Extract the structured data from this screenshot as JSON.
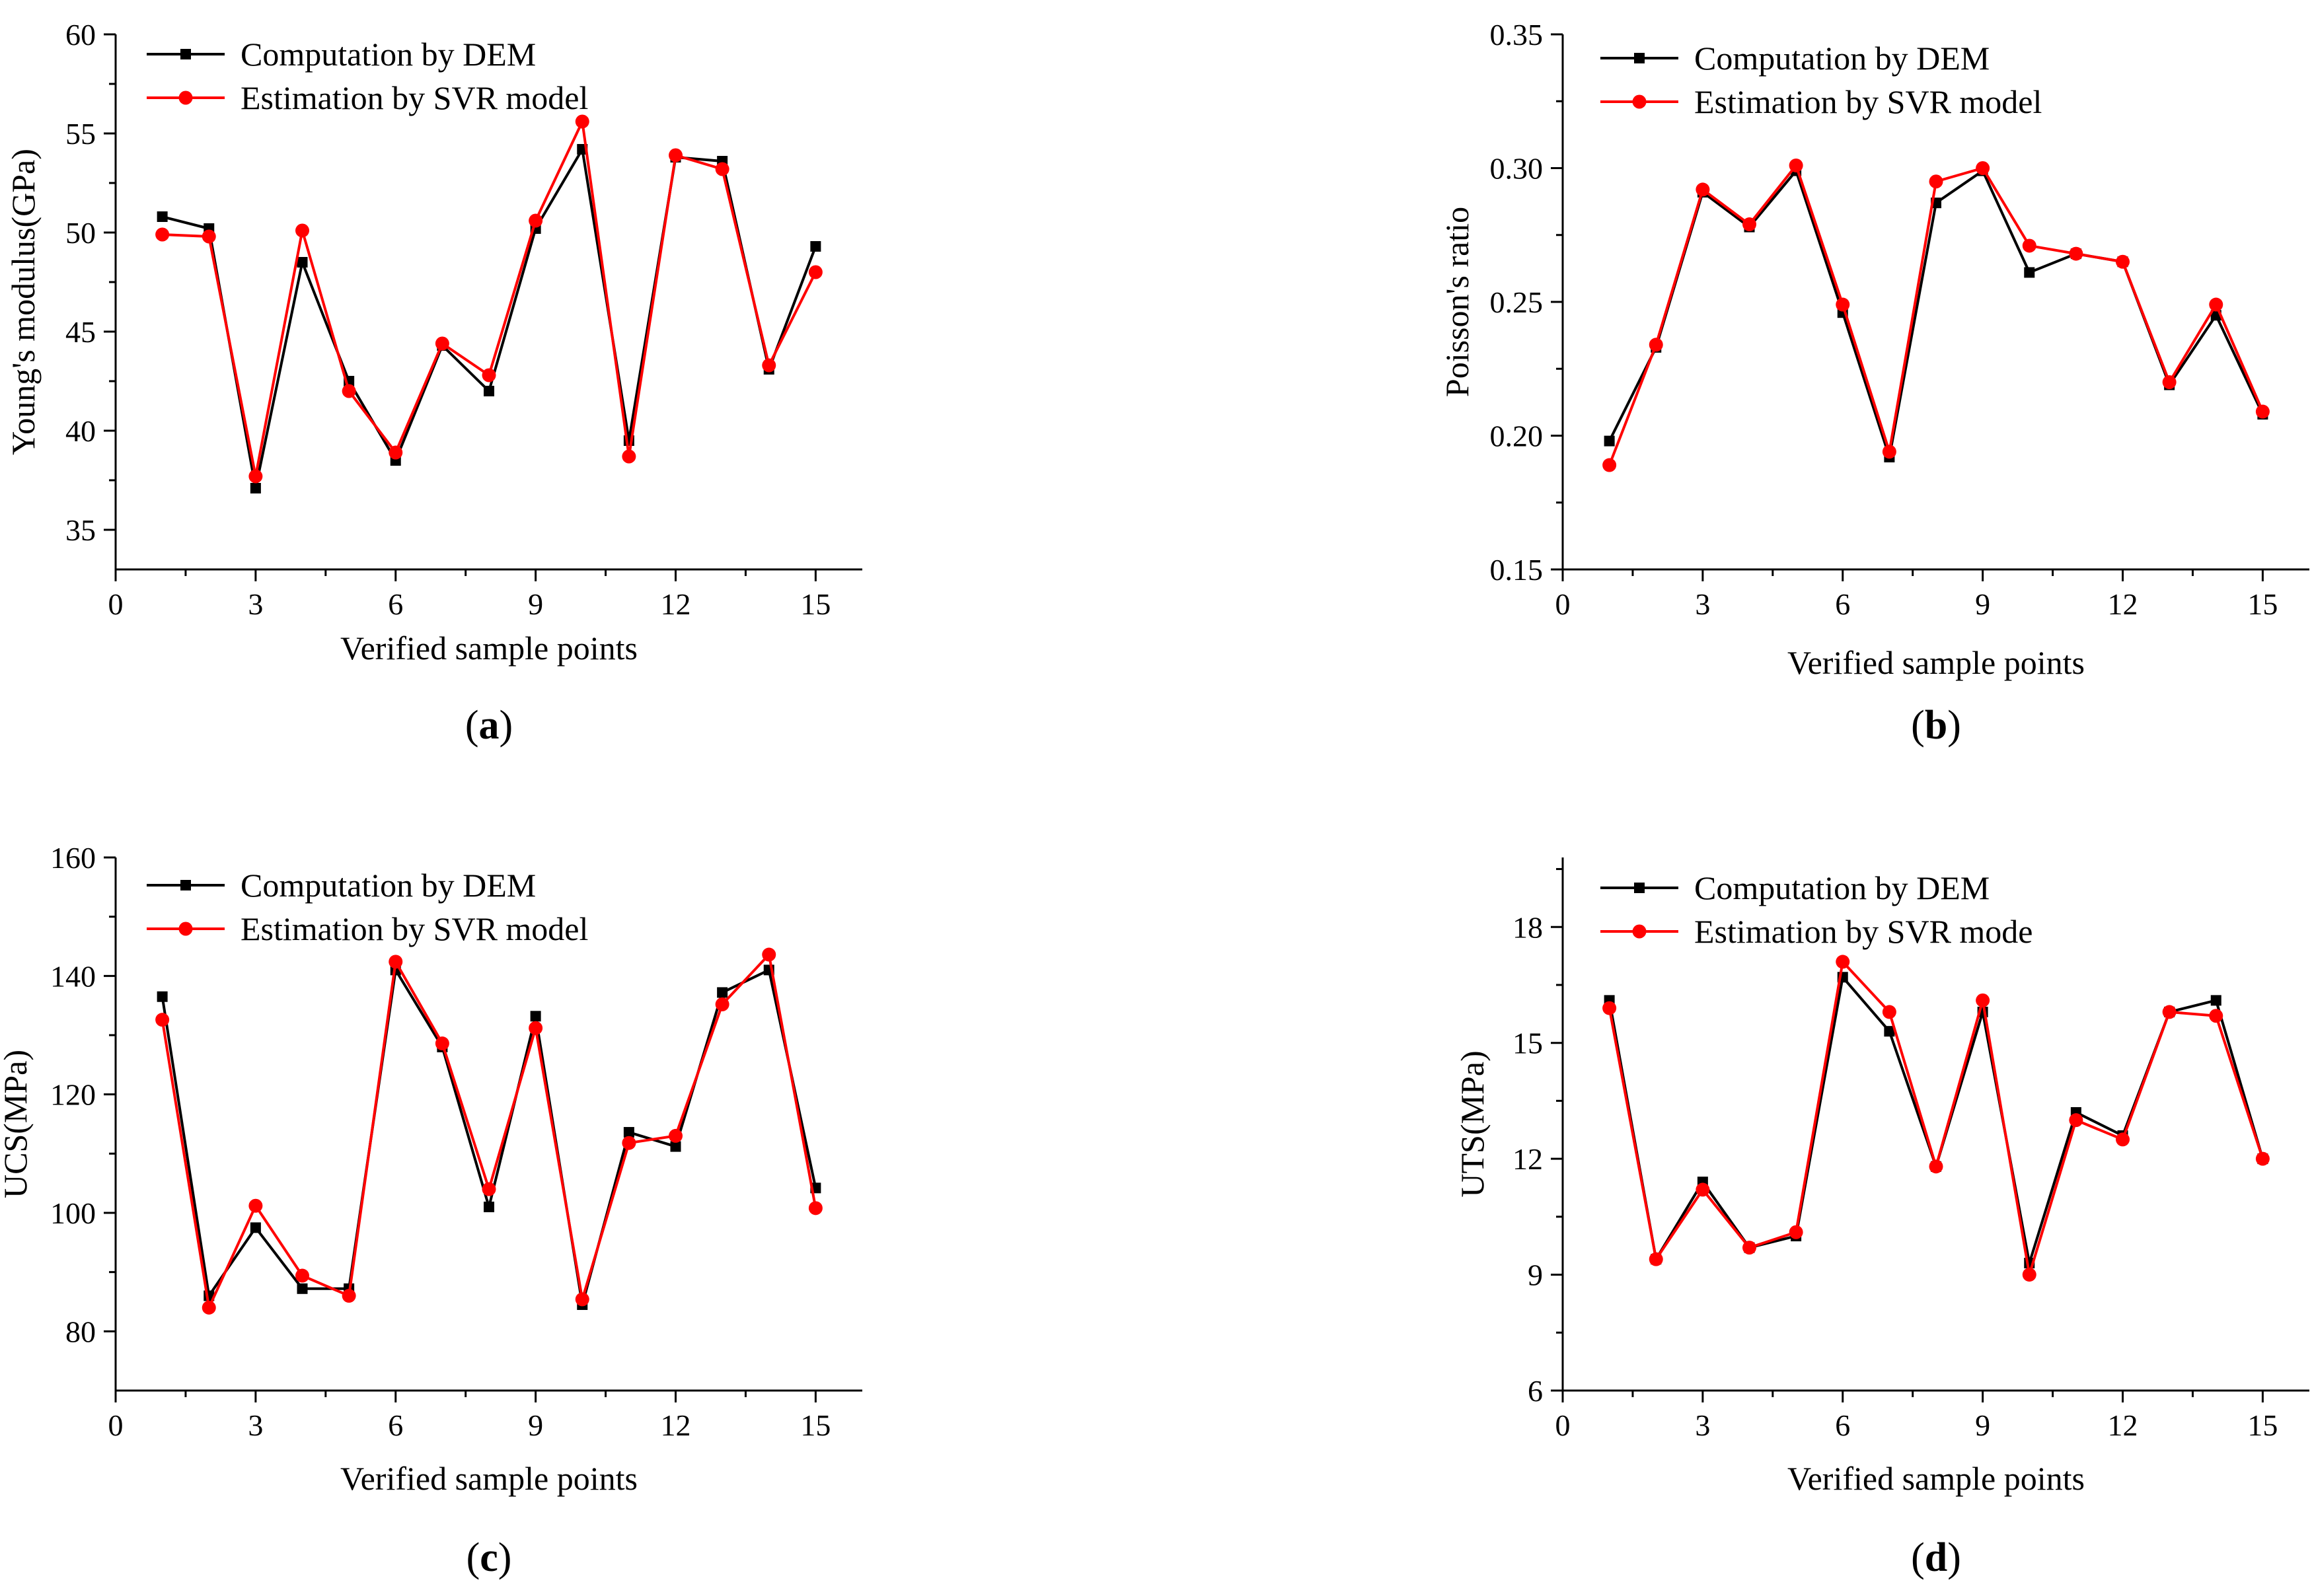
{
  "figure": {
    "colors": {
      "dem": "#000000",
      "svr": "#ff0000"
    }
  },
  "chart_data": [
    {
      "id": "a",
      "type": "line",
      "panel_label": "(a)",
      "panel_letter": "a",
      "xlabel": "Verified sample points",
      "ylabel": "Young's modulus(GPa)",
      "xlim": [
        0,
        16
      ],
      "ylim": [
        33,
        60
      ],
      "xticks": [
        0,
        3,
        6,
        9,
        12,
        15
      ],
      "yticks": [
        35,
        40,
        45,
        50,
        55,
        60
      ],
      "ytick_labels": [
        "35",
        "40",
        "45",
        "50",
        "55",
        "60"
      ],
      "legend_position": "top-left",
      "x": [
        1,
        2,
        3,
        4,
        5,
        6,
        7,
        8,
        9,
        10,
        11,
        12,
        13,
        14,
        15
      ],
      "series": [
        {
          "name": "Computation by DEM",
          "marker": "square",
          "color": "#000000",
          "values": [
            50.8,
            50.2,
            37.1,
            48.5,
            42.5,
            38.5,
            44.3,
            42.0,
            50.2,
            54.2,
            39.5,
            53.8,
            53.6,
            43.1,
            49.3
          ]
        },
        {
          "name": "Estimation by SVR model",
          "marker": "circle",
          "color": "#ff0000",
          "values": [
            49.9,
            49.8,
            37.7,
            50.1,
            42.0,
            38.9,
            44.4,
            42.8,
            50.6,
            55.6,
            38.7,
            53.9,
            53.2,
            43.3,
            48.0
          ]
        }
      ]
    },
    {
      "id": "b",
      "type": "line",
      "panel_label": "(b)",
      "panel_letter": "b",
      "xlabel": "Verified sample points",
      "ylabel": "Poisson's ratio",
      "xlim": [
        0,
        16
      ],
      "ylim": [
        0.15,
        0.35
      ],
      "xticks": [
        0,
        3,
        6,
        9,
        12,
        15
      ],
      "yticks": [
        0.15,
        0.2,
        0.25,
        0.3,
        0.35
      ],
      "ytick_labels": [
        "0.15",
        "0.20",
        "0.25",
        "0.30",
        "0.35"
      ],
      "legend_position": "top-left",
      "x": [
        1,
        2,
        3,
        4,
        5,
        6,
        7,
        8,
        9,
        10,
        11,
        12,
        13,
        14,
        15
      ],
      "series": [
        {
          "name": "Computation by DEM",
          "marker": "square",
          "color": "#000000",
          "values": [
            0.198,
            0.233,
            0.291,
            0.278,
            0.299,
            0.246,
            0.192,
            0.287,
            0.299,
            0.261,
            0.268,
            0.265,
            0.219,
            0.245,
            0.208
          ]
        },
        {
          "name": "Estimation by SVR model",
          "marker": "circle",
          "color": "#ff0000",
          "values": [
            0.189,
            0.234,
            0.292,
            0.279,
            0.301,
            0.249,
            0.194,
            0.295,
            0.3,
            0.271,
            0.268,
            0.265,
            0.22,
            0.249,
            0.209
          ]
        }
      ]
    },
    {
      "id": "c",
      "type": "line",
      "panel_label": "(c)",
      "panel_letter": "c",
      "xlabel": "Verified sample points",
      "ylabel": "UCS(MPa)",
      "xlim": [
        0,
        16
      ],
      "ylim": [
        70,
        160
      ],
      "xticks": [
        0,
        3,
        6,
        9,
        12,
        15
      ],
      "yticks": [
        80,
        100,
        120,
        140,
        160
      ],
      "ytick_labels": [
        "80",
        "100",
        "120",
        "140",
        "160"
      ],
      "legend_position": "top-left",
      "x": [
        1,
        2,
        3,
        4,
        5,
        6,
        7,
        8,
        9,
        10,
        11,
        12,
        13,
        14,
        15
      ],
      "series": [
        {
          "name": "Computation by DEM",
          "marker": "square",
          "color": "#000000",
          "values": [
            136.5,
            86.0,
            97.5,
            87.2,
            87.2,
            141.0,
            128.0,
            101.0,
            133.2,
            84.5,
            113.6,
            111.2,
            137.2,
            141.0,
            104.2
          ]
        },
        {
          "name": "Estimation by SVR model",
          "marker": "circle",
          "color": "#ff0000",
          "values": [
            132.6,
            84.0,
            101.2,
            89.4,
            86.0,
            142.4,
            128.6,
            104.0,
            131.2,
            85.4,
            111.8,
            113.0,
            135.2,
            143.6,
            100.8
          ]
        }
      ]
    },
    {
      "id": "d",
      "type": "line",
      "panel_label": "(d)",
      "panel_letter": "d",
      "xlabel": "Verified sample points",
      "ylabel": "UTS(MPa)",
      "xlim": [
        0,
        16
      ],
      "ylim": [
        6,
        19.8
      ],
      "xticks": [
        0,
        3,
        6,
        9,
        12,
        15
      ],
      "yticks": [
        6,
        9,
        12,
        15,
        18
      ],
      "ytick_labels": [
        "6",
        "9",
        "12",
        "15",
        "18"
      ],
      "legend_position": "top-left",
      "x": [
        1,
        2,
        3,
        4,
        5,
        6,
        7,
        8,
        9,
        10,
        11,
        12,
        13,
        14,
        15
      ],
      "series": [
        {
          "name": "Computation by DEM",
          "marker": "square",
          "color": "#000000",
          "values": [
            16.1,
            9.4,
            11.4,
            9.7,
            10.0,
            16.7,
            15.3,
            11.8,
            15.8,
            9.3,
            13.2,
            12.6,
            15.8,
            16.1,
            12.0
          ]
        },
        {
          "name": "Estimation by SVR mode",
          "marker": "circle",
          "color": "#ff0000",
          "values": [
            15.9,
            9.4,
            11.2,
            9.7,
            10.1,
            17.1,
            15.8,
            11.8,
            16.1,
            9.0,
            13.0,
            12.5,
            15.8,
            15.7,
            12.0
          ]
        }
      ]
    }
  ]
}
